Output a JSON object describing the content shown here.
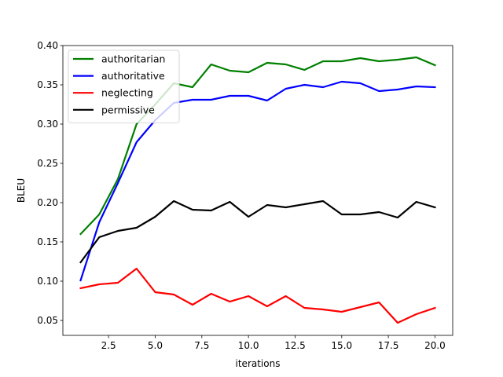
{
  "chart_data": {
    "type": "line",
    "xlabel": "iterations",
    "ylabel": "BLEU",
    "xlim": [
      0.05,
      20.95
    ],
    "ylim": [
      0.031,
      0.4
    ],
    "xticks": [
      2.5,
      5.0,
      7.5,
      10.0,
      12.5,
      15.0,
      17.5,
      20.0
    ],
    "xtick_labels": [
      "2.5",
      "5.0",
      "7.5",
      "10.0",
      "12.5",
      "15.0",
      "17.5",
      "20.0"
    ],
    "yticks": [
      0.05,
      0.1,
      0.15,
      0.2,
      0.25,
      0.3,
      0.35,
      0.4
    ],
    "ytick_labels": [
      "0.05",
      "0.10",
      "0.15",
      "0.20",
      "0.25",
      "0.30",
      "0.35",
      "0.40"
    ],
    "grid": false,
    "legend_position": "top-left",
    "x": [
      1,
      2,
      3,
      4,
      5,
      6,
      7,
      8,
      9,
      10,
      11,
      12,
      13,
      14,
      15,
      16,
      17,
      18,
      19,
      20
    ],
    "series": [
      {
        "name": "authoritarian",
        "color": "#008000",
        "values": [
          0.16,
          0.185,
          0.23,
          0.3,
          0.325,
          0.352,
          0.347,
          0.376,
          0.368,
          0.366,
          0.378,
          0.376,
          0.369,
          0.38,
          0.38,
          0.384,
          0.38,
          0.382,
          0.385,
          0.375
        ]
      },
      {
        "name": "authoritative",
        "color": "#0000ff",
        "values": [
          0.101,
          0.175,
          0.225,
          0.277,
          0.305,
          0.327,
          0.331,
          0.331,
          0.336,
          0.336,
          0.33,
          0.345,
          0.35,
          0.347,
          0.354,
          0.352,
          0.342,
          0.344,
          0.348,
          0.347
        ]
      },
      {
        "name": "neglecting",
        "color": "#ff0000",
        "values": [
          0.091,
          0.096,
          0.098,
          0.116,
          0.086,
          0.083,
          0.07,
          0.084,
          0.074,
          0.081,
          0.068,
          0.081,
          0.066,
          0.064,
          0.061,
          0.067,
          0.073,
          0.047,
          0.058,
          0.066
        ]
      },
      {
        "name": "permissive",
        "color": "#000000",
        "values": [
          0.124,
          0.156,
          0.164,
          0.168,
          0.182,
          0.202,
          0.191,
          0.19,
          0.201,
          0.182,
          0.197,
          0.194,
          0.198,
          0.202,
          0.185,
          0.185,
          0.188,
          0.181,
          0.201,
          0.194
        ]
      }
    ]
  }
}
